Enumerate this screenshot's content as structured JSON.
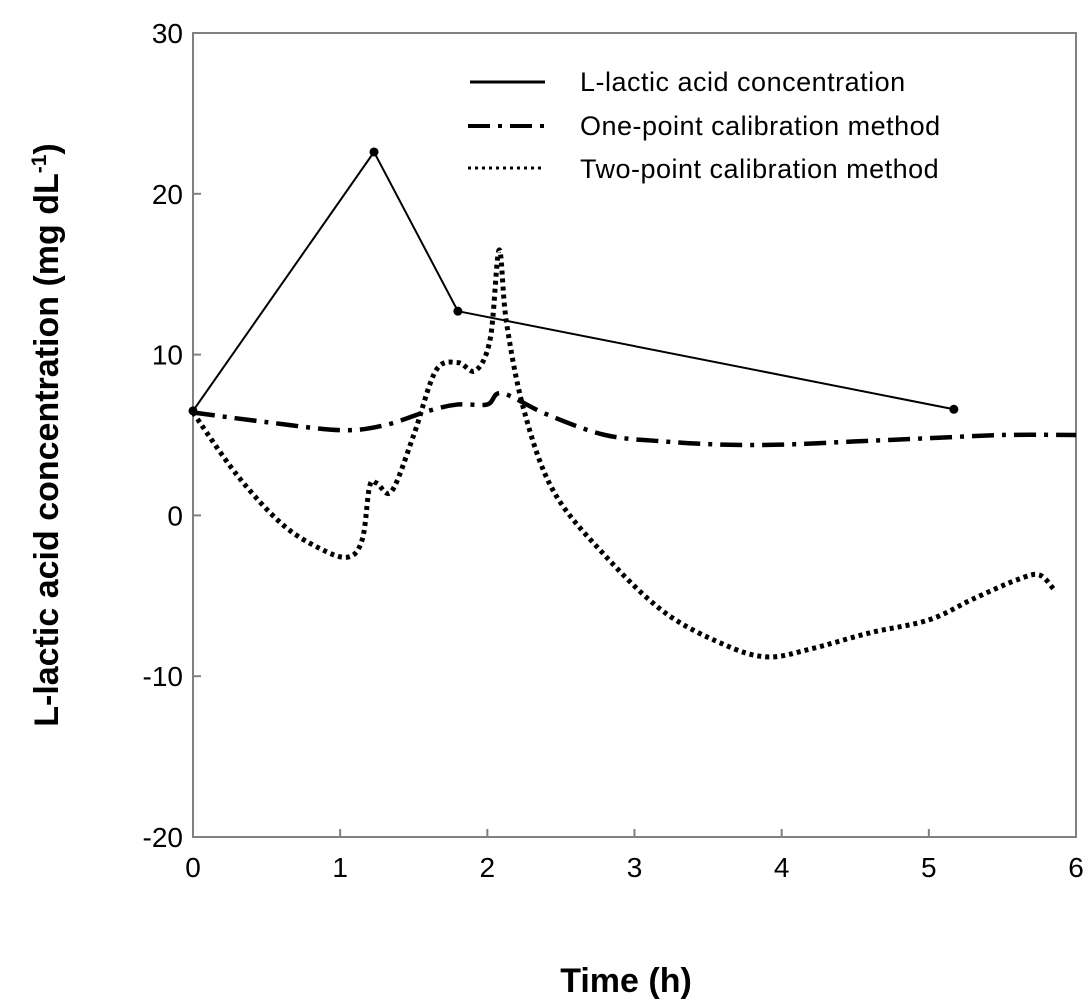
{
  "chart_data": {
    "type": "line",
    "title": "",
    "xlabel": "Time (h)",
    "ylabel": "L-lactic acid concentration (mg dL",
    "ylabel_sup": "-1",
    "ylabel_close": ")",
    "xlim": [
      0,
      6
    ],
    "ylim": [
      -20,
      30
    ],
    "xticks": [
      0,
      1,
      2,
      3,
      4,
      5,
      6
    ],
    "xtick_labels": [
      "0",
      "1",
      "2",
      "3",
      "4",
      "5",
      "6"
    ],
    "yticks": [
      -20,
      -10,
      0,
      10,
      20,
      30
    ],
    "ytick_labels": [
      "-20",
      "-10",
      "0",
      "10",
      "20",
      "30"
    ],
    "grid": false,
    "legend_position": "top-right",
    "series": [
      {
        "name": "L-lactic acid concentration",
        "style": "solid",
        "markers": true,
        "x": [
          0,
          1.23,
          1.8,
          5.17
        ],
        "y": [
          6.5,
          22.6,
          12.7,
          6.6
        ]
      },
      {
        "name": "One-point calibration method",
        "style": "dashdot",
        "markers": false,
        "x": [
          0,
          0.5,
          1.0,
          1.3,
          1.6,
          1.8,
          2.0,
          2.1,
          2.4,
          2.8,
          3.2,
          3.6,
          4.0,
          4.5,
          5.0,
          5.5,
          6.0
        ],
        "y": [
          6.4,
          5.8,
          5.3,
          5.6,
          6.5,
          6.9,
          6.9,
          7.6,
          6.3,
          5.0,
          4.6,
          4.4,
          4.4,
          4.6,
          4.8,
          5.0,
          5.0
        ]
      },
      {
        "name": "Two-point calibration method",
        "style": "dotted",
        "markers": false,
        "x": [
          0,
          0.3,
          0.6,
          0.85,
          1.05,
          1.15,
          1.2,
          1.25,
          1.35,
          1.5,
          1.65,
          1.8,
          1.92,
          2.02,
          2.08,
          2.13,
          2.25,
          2.45,
          2.8,
          3.2,
          3.6,
          3.9,
          4.2,
          4.6,
          5.0,
          5.3,
          5.6,
          5.75,
          5.85
        ],
        "y": [
          6.4,
          2.5,
          -0.5,
          -2.0,
          -2.6,
          -1.5,
          1.8,
          2.0,
          1.5,
          5.0,
          9.0,
          9.5,
          9.0,
          11.0,
          16.5,
          12.0,
          6.5,
          1.5,
          -2.5,
          -6.0,
          -8.0,
          -8.8,
          -8.3,
          -7.3,
          -6.5,
          -5.2,
          -4.0,
          -3.7,
          -4.6
        ]
      }
    ]
  }
}
